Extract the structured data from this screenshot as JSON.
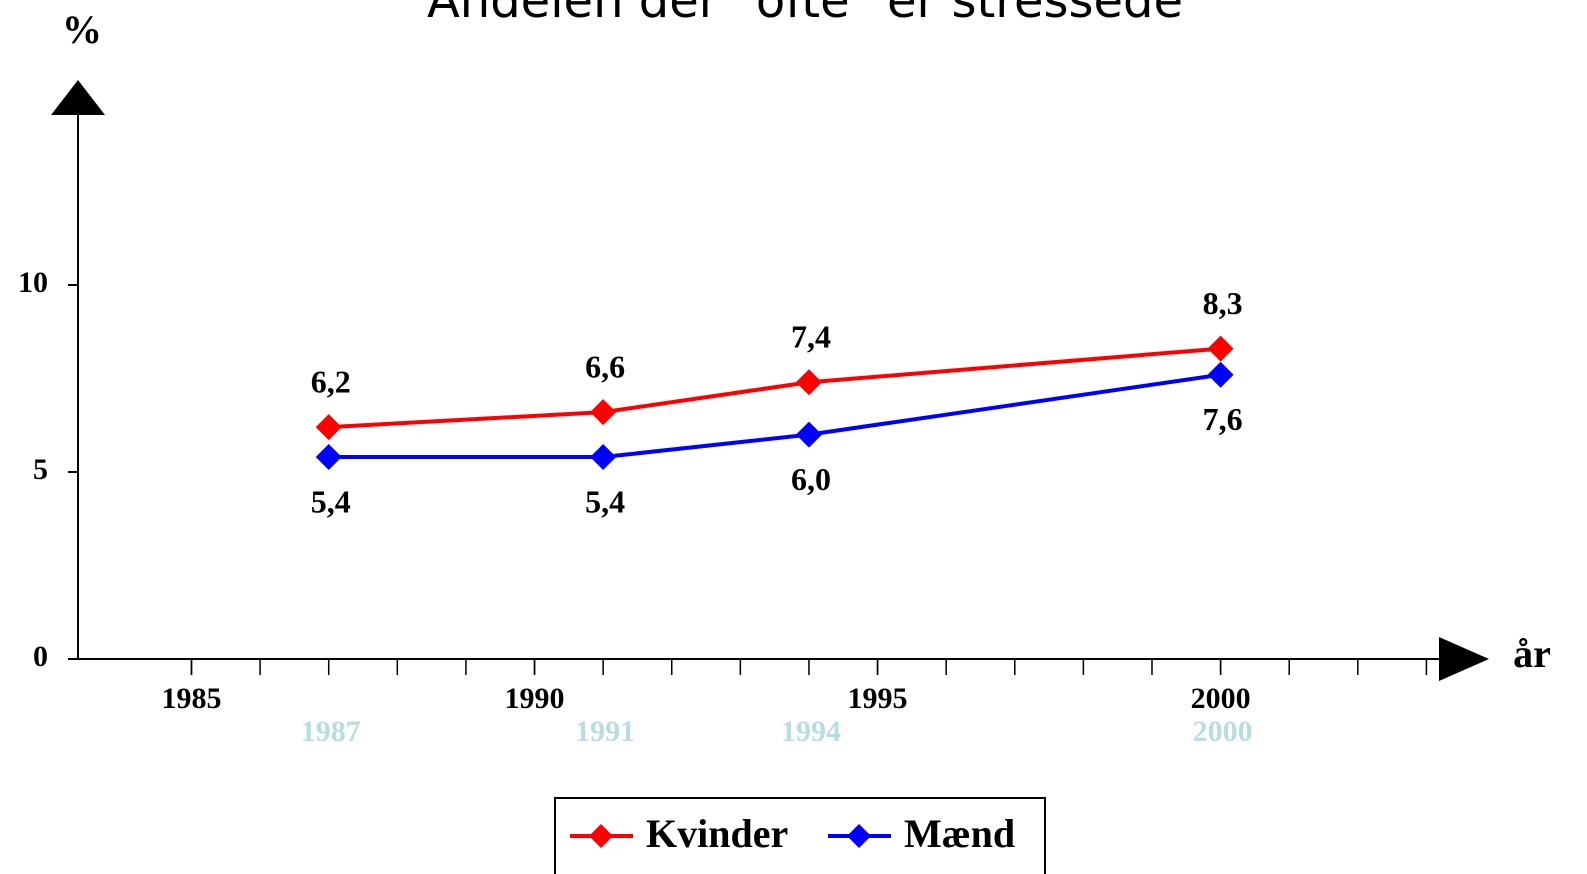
{
  "chart_data": {
    "type": "line",
    "title": "Andelen der \"ofte\" er stressede",
    "y_label": "%",
    "x_label": "år",
    "x": [
      1987,
      1991,
      1994,
      2000
    ],
    "series": [
      {
        "name": "Kvinder",
        "color": "#ff0000",
        "values": [
          6.2,
          6.6,
          7.4,
          8.3
        ],
        "value_labels": [
          "6,2",
          "6,6",
          "7,4",
          "8,3"
        ]
      },
      {
        "name": "Mænd",
        "color": "#0000ff",
        "values": [
          5.4,
          5.4,
          6.0,
          7.6
        ],
        "value_labels": [
          "5,4",
          "5,4",
          "6,0",
          "7,6"
        ]
      }
    ],
    "xlim": [
      1983.2,
      2003.3
    ],
    "xticks": [
      1985,
      1990,
      1995,
      2000
    ],
    "minor_tick_step": 1,
    "ylim": [
      0,
      15
    ],
    "yticks": [
      0,
      5,
      10
    ],
    "grid": false,
    "legend": "bottom"
  }
}
